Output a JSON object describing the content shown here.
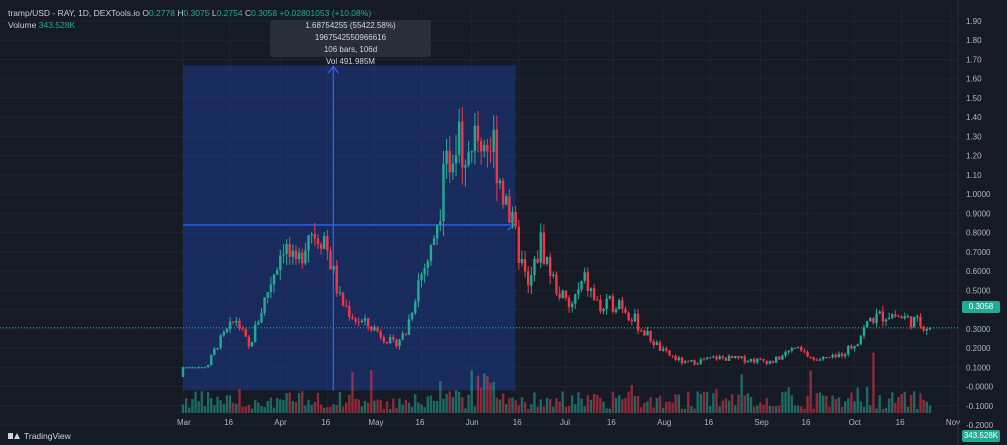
{
  "legend": {
    "symbol": "tramp/USD - RAY, 1D, DEXTools.io",
    "o_key": "O",
    "o_val": "0.2778",
    "h_key": "H",
    "h_val": "0.3075",
    "l_key": "L",
    "l_val": "0.2754",
    "c_key": "C",
    "c_val": "0.3058",
    "change": "+0.02801053 (+10.08%)",
    "volume_label": "Volume",
    "volume_val": "343.528K"
  },
  "tooltip": {
    "line1": "1.68754255 (55422.58%) 1967542550966616",
    "line2": "106 bars, 106d",
    "line3": "Vol 491.985M"
  },
  "footer": {
    "brand": "TradingView"
  },
  "colors": {
    "up": "#22ab94",
    "down": "#f23645",
    "background": "#161a25",
    "grid": "#1f2330",
    "text": "#b2b5be",
    "measure": "#2962ff",
    "measure_fill": "#1e3a8a"
  },
  "chart_data": {
    "type": "candlestick",
    "title": "",
    "y_tick_labels": [
      "1.90",
      "1.80",
      "1.70",
      "1.60",
      "1.50",
      "1.40",
      "1.30",
      "1.20",
      "1.10",
      "1.0000",
      "0.9000",
      "0.8000",
      "0.7000",
      "0.6000",
      "0.5000",
      "0.4000",
      "0.3000",
      "0.2000",
      "0.1000",
      "-0.0000",
      "-0.1000",
      "-0.2000"
    ],
    "ylim": [
      -0.24,
      1.95
    ],
    "x_tick_labels": [
      "Mar",
      "16",
      "Apr",
      "16",
      "May",
      "16",
      "Jun",
      "16",
      "Jul",
      "16",
      "Aug",
      "16",
      "Sep",
      "16",
      "Oct",
      "16",
      "Nov"
    ],
    "last_price": 0.3058,
    "last_price_label": "0.3058",
    "last_volume_label": "343.528K",
    "series_close_keypoints": [
      [
        "2024-03-01",
        0.05
      ],
      [
        "2024-03-08",
        0.08
      ],
      [
        "2024-03-12",
        0.22
      ],
      [
        "2024-03-18",
        0.35
      ],
      [
        "2024-03-22",
        0.2
      ],
      [
        "2024-03-28",
        0.5
      ],
      [
        "2024-04-02",
        0.75
      ],
      [
        "2024-04-06",
        0.6
      ],
      [
        "2024-04-10",
        0.82
      ],
      [
        "2024-04-15",
        0.78
      ],
      [
        "2024-04-20",
        0.45
      ],
      [
        "2024-04-25",
        0.35
      ],
      [
        "2024-05-01",
        0.3
      ],
      [
        "2024-05-07",
        0.22
      ],
      [
        "2024-05-11",
        0.28
      ],
      [
        "2024-05-15",
        0.55
      ],
      [
        "2024-05-19",
        0.7
      ],
      [
        "2024-05-23",
        1.05
      ],
      [
        "2024-05-27",
        1.35
      ],
      [
        "2024-05-31",
        1.2
      ],
      [
        "2024-06-04",
        1.3
      ],
      [
        "2024-06-08",
        1.25
      ],
      [
        "2024-06-12",
        0.95
      ],
      [
        "2024-06-16",
        0.7
      ],
      [
        "2024-06-19",
        0.5
      ],
      [
        "2024-06-23",
        0.75
      ],
      [
        "2024-06-27",
        0.55
      ],
      [
        "2024-07-02",
        0.4
      ],
      [
        "2024-07-07",
        0.55
      ],
      [
        "2024-07-12",
        0.4
      ],
      [
        "2024-07-18",
        0.45
      ],
      [
        "2024-07-25",
        0.3
      ],
      [
        "2024-08-01",
        0.18
      ],
      [
        "2024-08-08",
        0.12
      ],
      [
        "2024-08-18",
        0.15
      ],
      [
        "2024-08-28",
        0.14
      ],
      [
        "2024-09-05",
        0.13
      ],
      [
        "2024-09-12",
        0.2
      ],
      [
        "2024-09-18",
        0.14
      ],
      [
        "2024-09-25",
        0.15
      ],
      [
        "2024-10-01",
        0.22
      ],
      [
        "2024-10-06",
        0.35
      ],
      [
        "2024-10-12",
        0.38
      ],
      [
        "2024-10-18",
        0.35
      ],
      [
        "2024-10-25",
        0.31
      ]
    ],
    "measure": {
      "from": "2024-03-01",
      "to": "2024-06-15",
      "low": -0.02,
      "high": 1.67
    }
  }
}
